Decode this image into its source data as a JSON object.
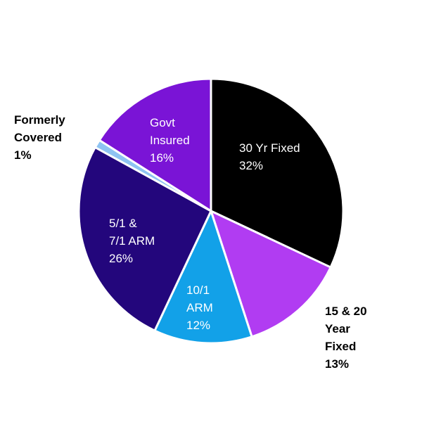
{
  "chart_data": {
    "type": "pie",
    "categories": [
      "30 Yr Fixed",
      "15 & 20\nYear\nFixed",
      "10/1\nARM",
      "5/1 &\n7/1 ARM",
      "Formerly\nCovered",
      "Govt\nInsured"
    ],
    "values": [
      32,
      13,
      12,
      26,
      1,
      16
    ],
    "value_labels": [
      "32%",
      "13%",
      "12%",
      "26%",
      "1%",
      "16%"
    ],
    "colors": [
      "#000000",
      "#b13cf2",
      "#12a1e8",
      "#23067c",
      "#8ec3f2",
      "#7a14d6"
    ]
  }
}
